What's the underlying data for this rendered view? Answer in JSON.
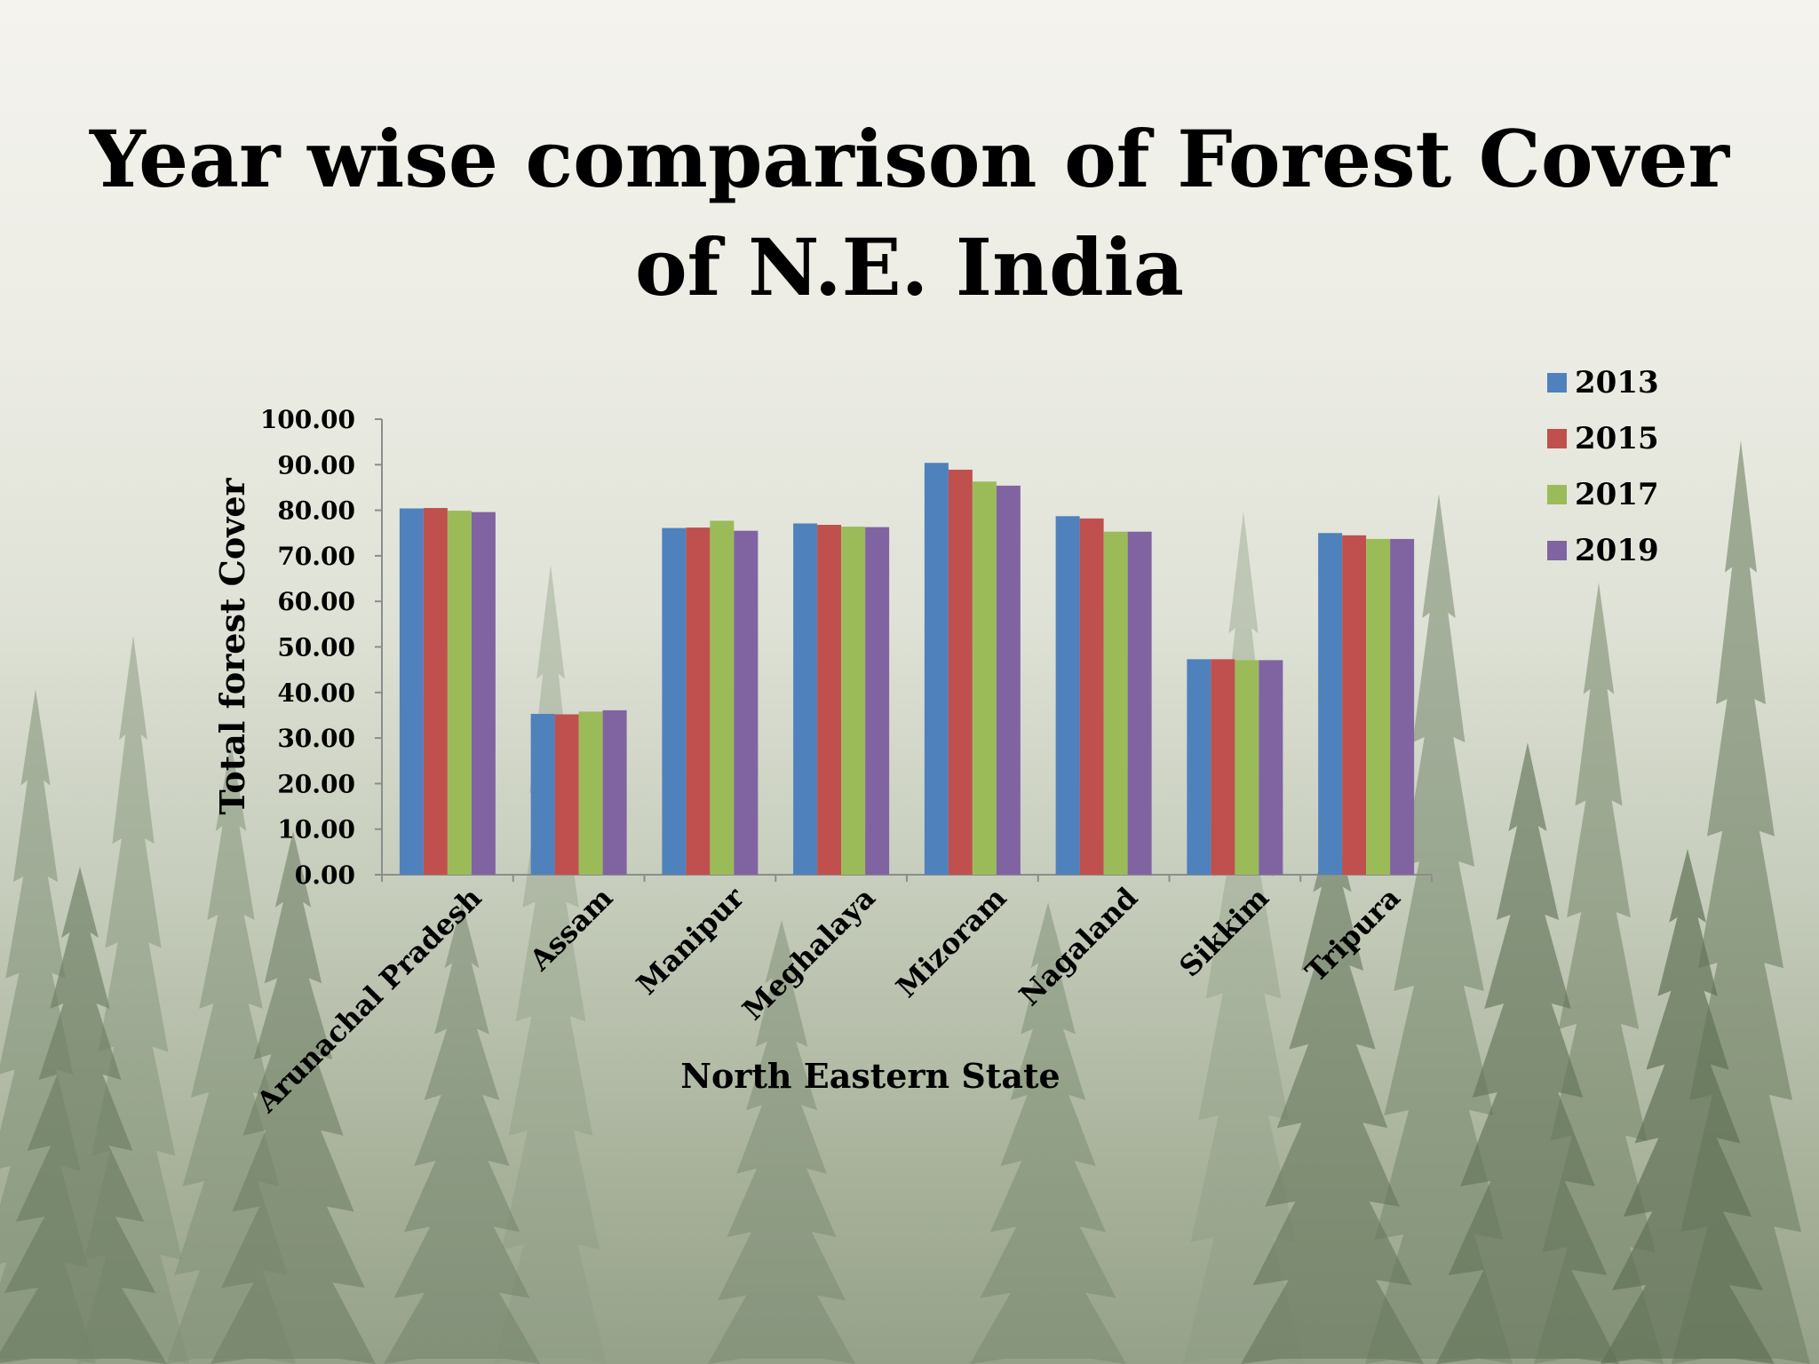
{
  "slide": {
    "title_line1": "Year wise comparison of Forest Cover",
    "title_line2": "of N.E. India"
  },
  "chart_data": {
    "type": "bar",
    "title": "",
    "xlabel": "North Eastern State",
    "ylabel": "Total forest Cover",
    "ylim": [
      0,
      100
    ],
    "yticks": [
      "0.00",
      "10.00",
      "20.00",
      "30.00",
      "40.00",
      "50.00",
      "60.00",
      "70.00",
      "80.00",
      "90.00",
      "100.00"
    ],
    "grid": false,
    "legend_position": "top-right",
    "categories": [
      "Arunachal Pradesh",
      "Assam",
      "Manipur",
      "Meghalaya",
      "Mizoram",
      "Nagaland",
      "Sikkim",
      "Tripura"
    ],
    "series": [
      {
        "name": "2013",
        "color": "#4f81bd",
        "values": [
          80.4,
          35.3,
          76.1,
          77.1,
          90.4,
          78.7,
          47.3,
          75.0
        ]
      },
      {
        "name": "2015",
        "color": "#c0504d",
        "values": [
          80.5,
          35.2,
          76.2,
          76.8,
          88.9,
          78.2,
          47.3,
          74.5
        ]
      },
      {
        "name": "2017",
        "color": "#9bbb59",
        "values": [
          79.9,
          35.8,
          77.7,
          76.4,
          86.3,
          75.3,
          47.1,
          73.7
        ]
      },
      {
        "name": "2019",
        "color": "#8064a2",
        "values": [
          79.6,
          36.1,
          75.5,
          76.3,
          85.4,
          75.3,
          47.1,
          73.7
        ]
      }
    ]
  }
}
